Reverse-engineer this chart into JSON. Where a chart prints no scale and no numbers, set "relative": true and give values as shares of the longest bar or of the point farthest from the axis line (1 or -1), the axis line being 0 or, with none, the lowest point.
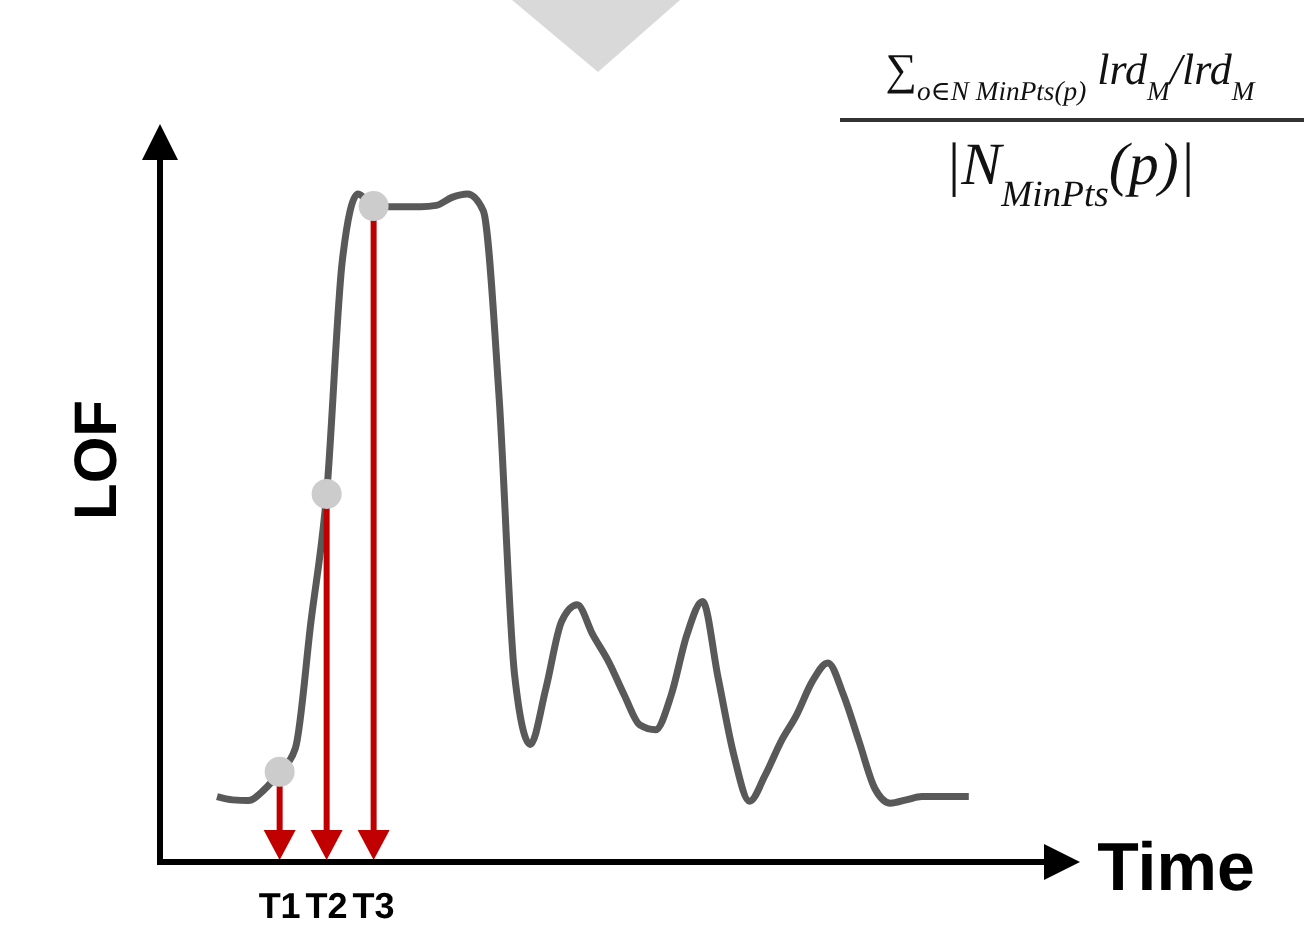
{
  "chart_data": {
    "type": "line",
    "relative": true,
    "xlabel": "Time",
    "ylabel": "LOF",
    "categories": [
      null,
      null,
      null,
      null,
      "T1",
      null,
      null,
      "T2",
      null,
      null,
      "T3",
      null,
      null,
      null,
      null,
      null,
      null,
      null,
      null,
      null,
      null,
      null,
      null,
      null,
      null,
      null,
      null,
      null,
      null,
      null,
      null,
      null,
      null,
      null,
      null,
      null,
      null,
      null,
      null,
      null,
      null,
      null,
      null,
      null,
      null,
      null,
      null,
      null,
      null
    ],
    "annotations": [
      "∑$_{o∈N MinPts(p)}$ lrd$_{M}$/lrd$_{M}$",
      "|N$_{MinPts}$(p)|"
    ],
    "series": [
      {
        "color": "#595959",
        "values": [
          0.098,
          0.093,
          0.092,
          0.108,
          0.135,
          0.17,
          0.36,
          0.551,
          0.9,
          1.0,
          0.982,
          0.981,
          0.981,
          0.981,
          0.983,
          0.995,
          1.0,
          0.975,
          0.7,
          0.28,
          0.176,
          0.26,
          0.36,
          0.385,
          0.34,
          0.3,
          0.25,
          0.205,
          0.198,
          0.25,
          0.34,
          0.39,
          0.275,
          0.16,
          0.091,
          0.13,
          0.18,
          0.22,
          0.27,
          0.298,
          0.25,
          0.18,
          0.11,
          0.088,
          0.093,
          0.098,
          0.098,
          0.098,
          0.098
        ]
      },
      {
        "type": "scatter",
        "color": "#cccccc",
        "x": [
          "T1",
          "T2",
          "T3"
        ],
        "values": [
          0.135,
          0.551,
          0.982
        ]
      }
    ]
  }
}
